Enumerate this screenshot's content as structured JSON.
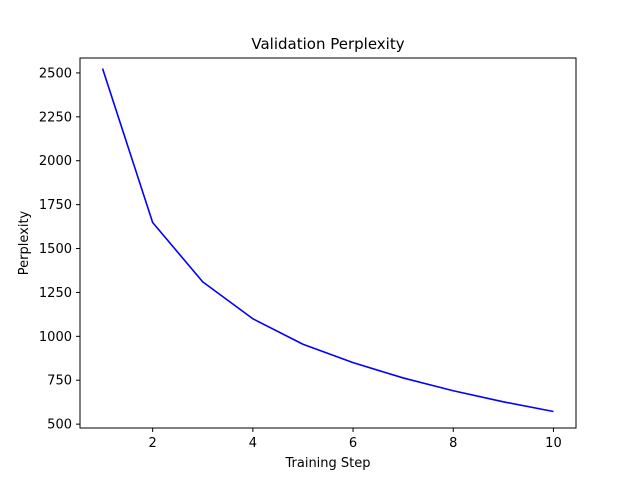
{
  "chart_data": {
    "type": "line",
    "title": "Validation Perplexity",
    "xlabel": "Training Step",
    "ylabel": "Perplexity",
    "xlim": [
      0.55,
      10.45
    ],
    "ylim": [
      478,
      2585
    ],
    "grid": false,
    "x_ticks": [
      2,
      4,
      6,
      8,
      10
    ],
    "y_ticks": [
      500,
      750,
      1000,
      1250,
      1500,
      1750,
      2000,
      2250,
      2500
    ],
    "series": [
      {
        "color": "#0000ff",
        "x": [
          1,
          2,
          3,
          4,
          5,
          6,
          7,
          8,
          9,
          10
        ],
        "y": [
          2525,
          1648,
          1310,
          1100,
          955,
          850,
          763,
          690,
          627,
          572
        ]
      }
    ]
  }
}
